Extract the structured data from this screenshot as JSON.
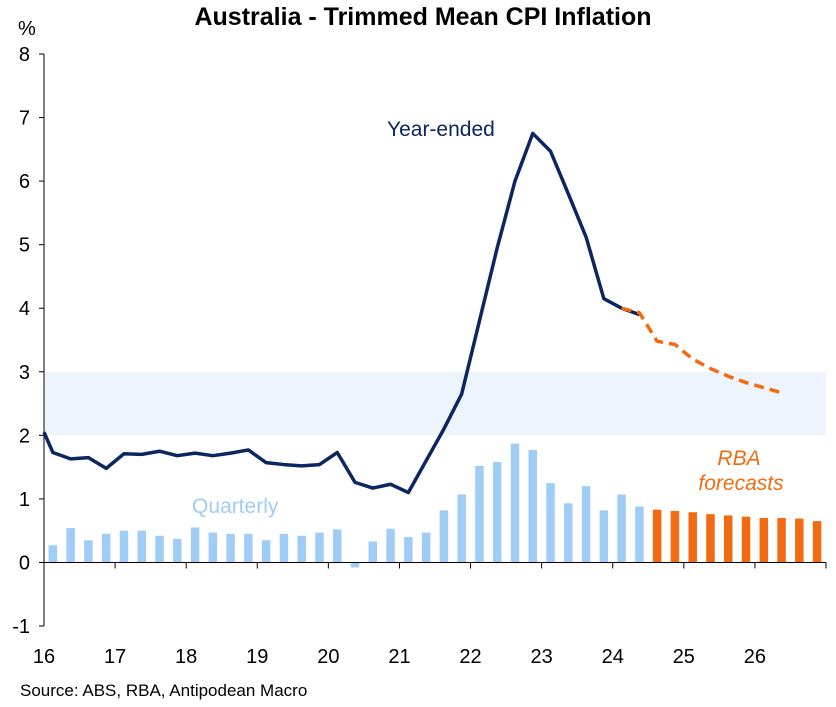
{
  "chart_data": {
    "type": "bar+line",
    "title": "Australia - Trimmed Mean CPI Inflation",
    "ylabel": "%",
    "ylim": [
      -1,
      8
    ],
    "yticks": [
      -1,
      0,
      1,
      2,
      3,
      4,
      5,
      6,
      7,
      8
    ],
    "xlim": [
      16,
      27
    ],
    "xticks": [
      "16",
      "17",
      "18",
      "19",
      "20",
      "21",
      "22",
      "23",
      "24",
      "25",
      "26"
    ],
    "grid": false,
    "target_band": [
      2,
      3
    ],
    "colors": {
      "year_ended": "#0c2660",
      "quarterly": "#9fcdf6",
      "forecast": "#f26b12",
      "band": "#eef4fb"
    },
    "quarterly": {
      "name": "Quarterly",
      "x": [
        16.125,
        16.375,
        16.625,
        16.875,
        17.125,
        17.375,
        17.625,
        17.875,
        18.125,
        18.375,
        18.625,
        18.875,
        19.125,
        19.375,
        19.625,
        19.875,
        20.125,
        20.375,
        20.625,
        20.875,
        21.125,
        21.375,
        21.625,
        21.875,
        22.125,
        22.375,
        22.625,
        22.875,
        23.125,
        23.375,
        23.625,
        23.875,
        24.125,
        24.375
      ],
      "values": [
        0.27,
        0.54,
        0.35,
        0.45,
        0.5,
        0.5,
        0.42,
        0.37,
        0.55,
        0.47,
        0.45,
        0.45,
        0.35,
        0.45,
        0.42,
        0.47,
        0.52,
        -0.08,
        0.33,
        0.53,
        0.4,
        0.47,
        0.82,
        1.07,
        1.52,
        1.58,
        1.87,
        1.77,
        1.25,
        0.93,
        1.2,
        0.82,
        1.07,
        0.88
      ]
    },
    "year_ended": {
      "name": "Year-ended",
      "x": [
        16.0,
        16.125,
        16.375,
        16.625,
        16.875,
        17.125,
        17.375,
        17.625,
        17.875,
        18.125,
        18.375,
        18.625,
        18.875,
        19.125,
        19.375,
        19.625,
        19.875,
        20.125,
        20.375,
        20.625,
        20.875,
        21.125,
        21.375,
        21.625,
        21.875,
        22.125,
        22.375,
        22.625,
        22.875,
        23.125,
        23.375,
        23.625,
        23.875,
        24.125,
        24.375
      ],
      "values": [
        2.05,
        1.73,
        1.63,
        1.65,
        1.48,
        1.71,
        1.7,
        1.75,
        1.68,
        1.72,
        1.68,
        1.72,
        1.77,
        1.57,
        1.54,
        1.52,
        1.54,
        1.73,
        1.26,
        1.17,
        1.23,
        1.1,
        1.6,
        2.1,
        2.65,
        3.8,
        4.95,
        6.0,
        6.75,
        6.47,
        5.8,
        5.12,
        4.15,
        4.0,
        3.9
      ]
    },
    "forecast_line": {
      "name": "RBA forecasts",
      "x": [
        24.125,
        24.375,
        24.625,
        24.875,
        25.125,
        25.375,
        25.625,
        25.875,
        26.125,
        26.375
      ],
      "values": [
        4.0,
        3.93,
        3.48,
        3.43,
        3.2,
        3.05,
        2.93,
        2.83,
        2.75,
        2.67
      ]
    },
    "forecast_bars": {
      "name": "RBA forecasts",
      "x": [
        24.625,
        24.875,
        25.125,
        25.375,
        25.625,
        25.875,
        26.125,
        26.375,
        26.625,
        26.875
      ],
      "values": [
        0.83,
        0.81,
        0.79,
        0.76,
        0.74,
        0.72,
        0.7,
        0.7,
        0.69,
        0.65
      ]
    },
    "annotations": {
      "year_ended": "Year-ended",
      "quarterly": "Quarterly",
      "rba_line1": "RBA",
      "rba_line2": "forecasts"
    },
    "source": "Source: ABS, RBA, Antipodean Macro"
  }
}
